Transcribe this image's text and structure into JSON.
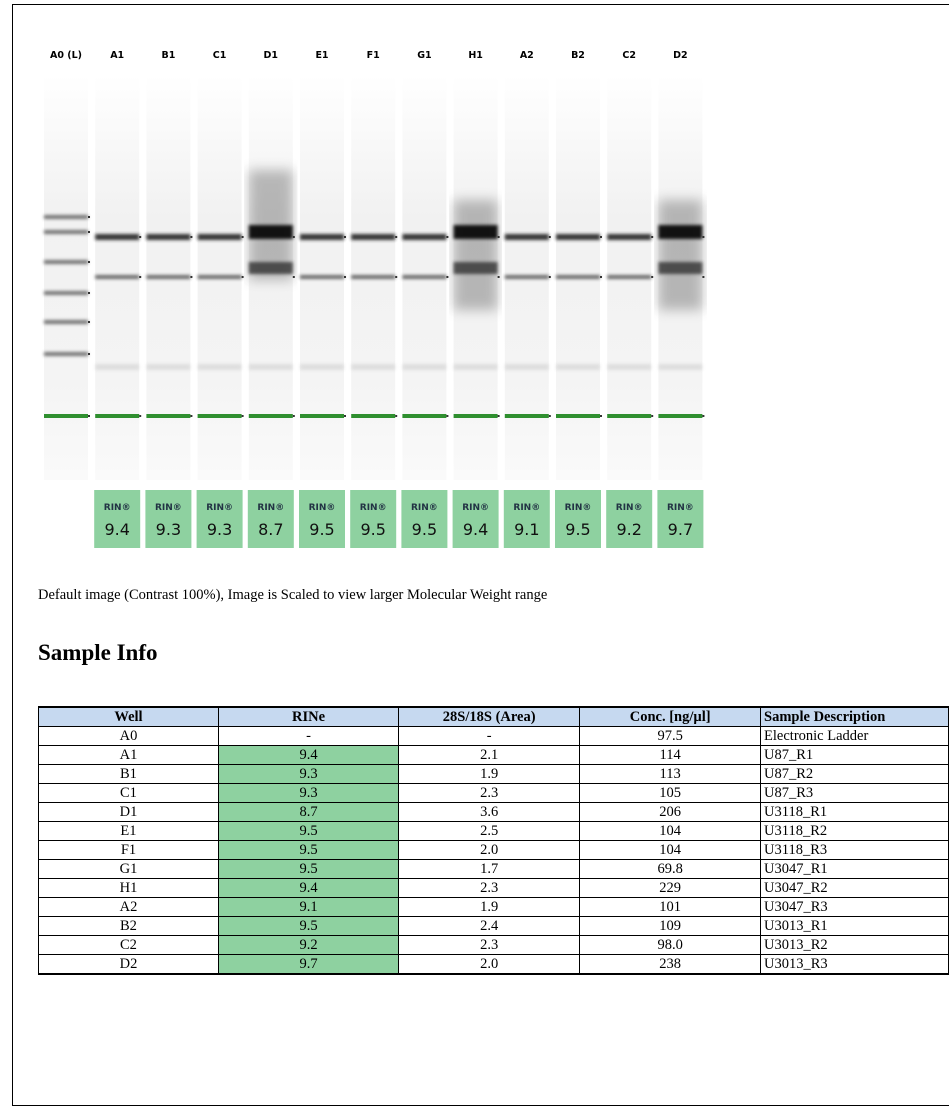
{
  "gel": {
    "lanes": [
      "A0 (L)",
      "A1",
      "B1",
      "C1",
      "D1",
      "E1",
      "F1",
      "G1",
      "H1",
      "A2",
      "B2",
      "C2",
      "D2"
    ],
    "rin_label": "RIN®",
    "rin": [
      "9.4",
      "9.3",
      "9.3",
      "8.7",
      "9.5",
      "9.5",
      "9.5",
      "9.4",
      "9.1",
      "9.5",
      "9.2",
      "9.7"
    ]
  },
  "caption": "Default image (Contrast 100%), Image is Scaled to view larger Molecular Weight range",
  "section_title": "Sample Info",
  "table": {
    "header": [
      "Well",
      "RINe",
      "28S/18S (Area)",
      "Conc. [ng/µl]",
      "Sample Description"
    ],
    "rows": [
      [
        "A0",
        "-",
        "-",
        "97.5",
        "Electronic Ladder"
      ],
      [
        "A1",
        "9.4",
        "2.1",
        "114",
        "U87_R1"
      ],
      [
        "B1",
        "9.3",
        "1.9",
        "113",
        "U87_R2"
      ],
      [
        "C1",
        "9.3",
        "2.3",
        "105",
        "U87_R3"
      ],
      [
        "D1",
        "8.7",
        "3.6",
        "206",
        "U3118_R1"
      ],
      [
        "E1",
        "9.5",
        "2.5",
        "104",
        "U3118_R2"
      ],
      [
        "F1",
        "9.5",
        "2.0",
        "104",
        "U3118_R3"
      ],
      [
        "G1",
        "9.5",
        "1.7",
        "69.8",
        "U3047_R1"
      ],
      [
        "H1",
        "9.4",
        "2.3",
        "229",
        "U3047_R2"
      ],
      [
        "A2",
        "9.1",
        "1.9",
        "101",
        "U3047_R3"
      ],
      [
        "B2",
        "9.5",
        "2.4",
        "109",
        "U3013_R1"
      ],
      [
        "C2",
        "9.2",
        "2.3",
        "98.0",
        "U3013_R2"
      ],
      [
        "D2",
        "9.7",
        "2.0",
        "238",
        "U3013_R3"
      ]
    ]
  }
}
